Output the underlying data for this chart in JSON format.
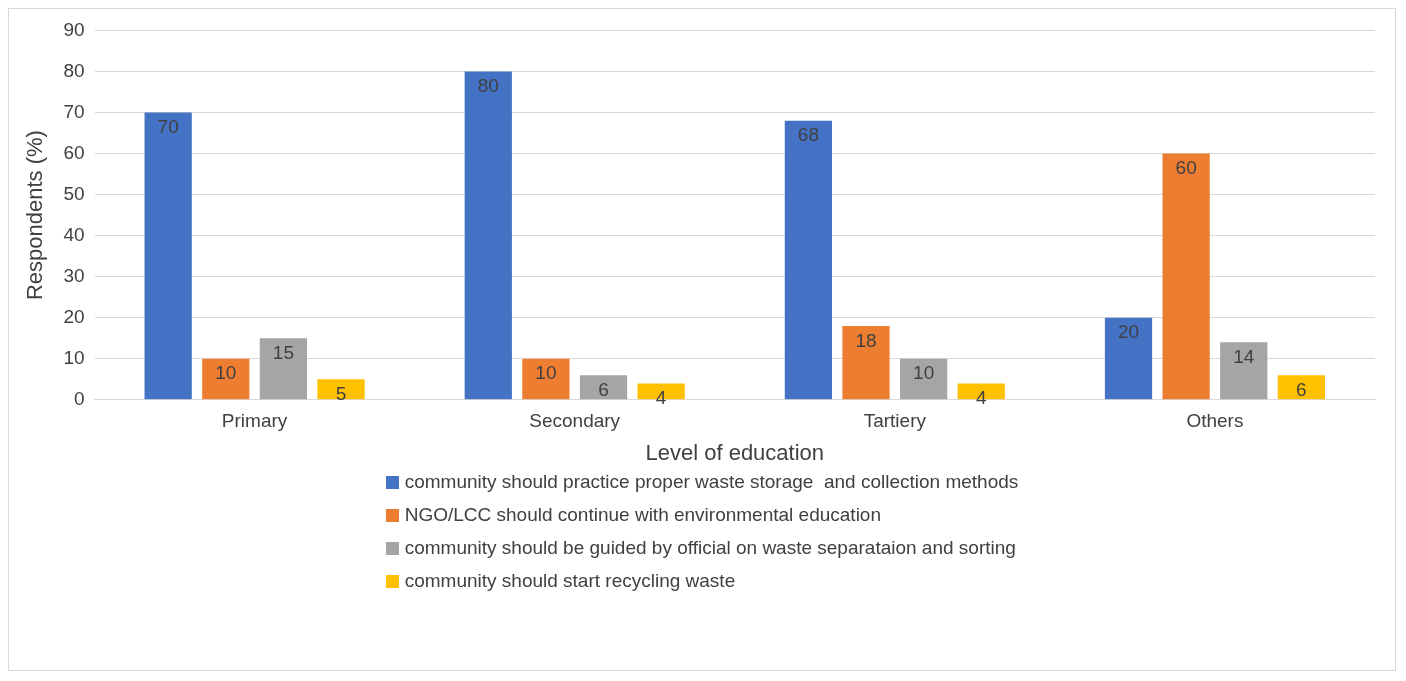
{
  "chart_data": {
    "type": "bar",
    "xlabel": "Level of education",
    "ylabel": "Respondents (%)",
    "categories": [
      "Primary",
      "Secondary",
      "Tartiery",
      "Others"
    ],
    "series": [
      {
        "name": "community should practice proper waste storage  and collection methods",
        "color": "#4472c4",
        "values": [
          70,
          80,
          68,
          20
        ]
      },
      {
        "name": "NGO/LCC should continue with environmental education",
        "color": "#ed7d31",
        "values": [
          10,
          10,
          18,
          60
        ]
      },
      {
        "name": "community should be guided by official on waste separataion and sorting",
        "color": "#a5a5a5",
        "values": [
          15,
          6,
          10,
          14
        ]
      },
      {
        "name": "community should start recycling waste",
        "color": "#ffc000",
        "values": [
          5,
          4,
          4,
          6
        ]
      }
    ],
    "ylim": [
      0,
      90
    ],
    "yticks": [
      0,
      10,
      20,
      30,
      40,
      50,
      60,
      70,
      80,
      90
    ],
    "grid": "y",
    "legend": "bottom",
    "data_labels": true
  }
}
